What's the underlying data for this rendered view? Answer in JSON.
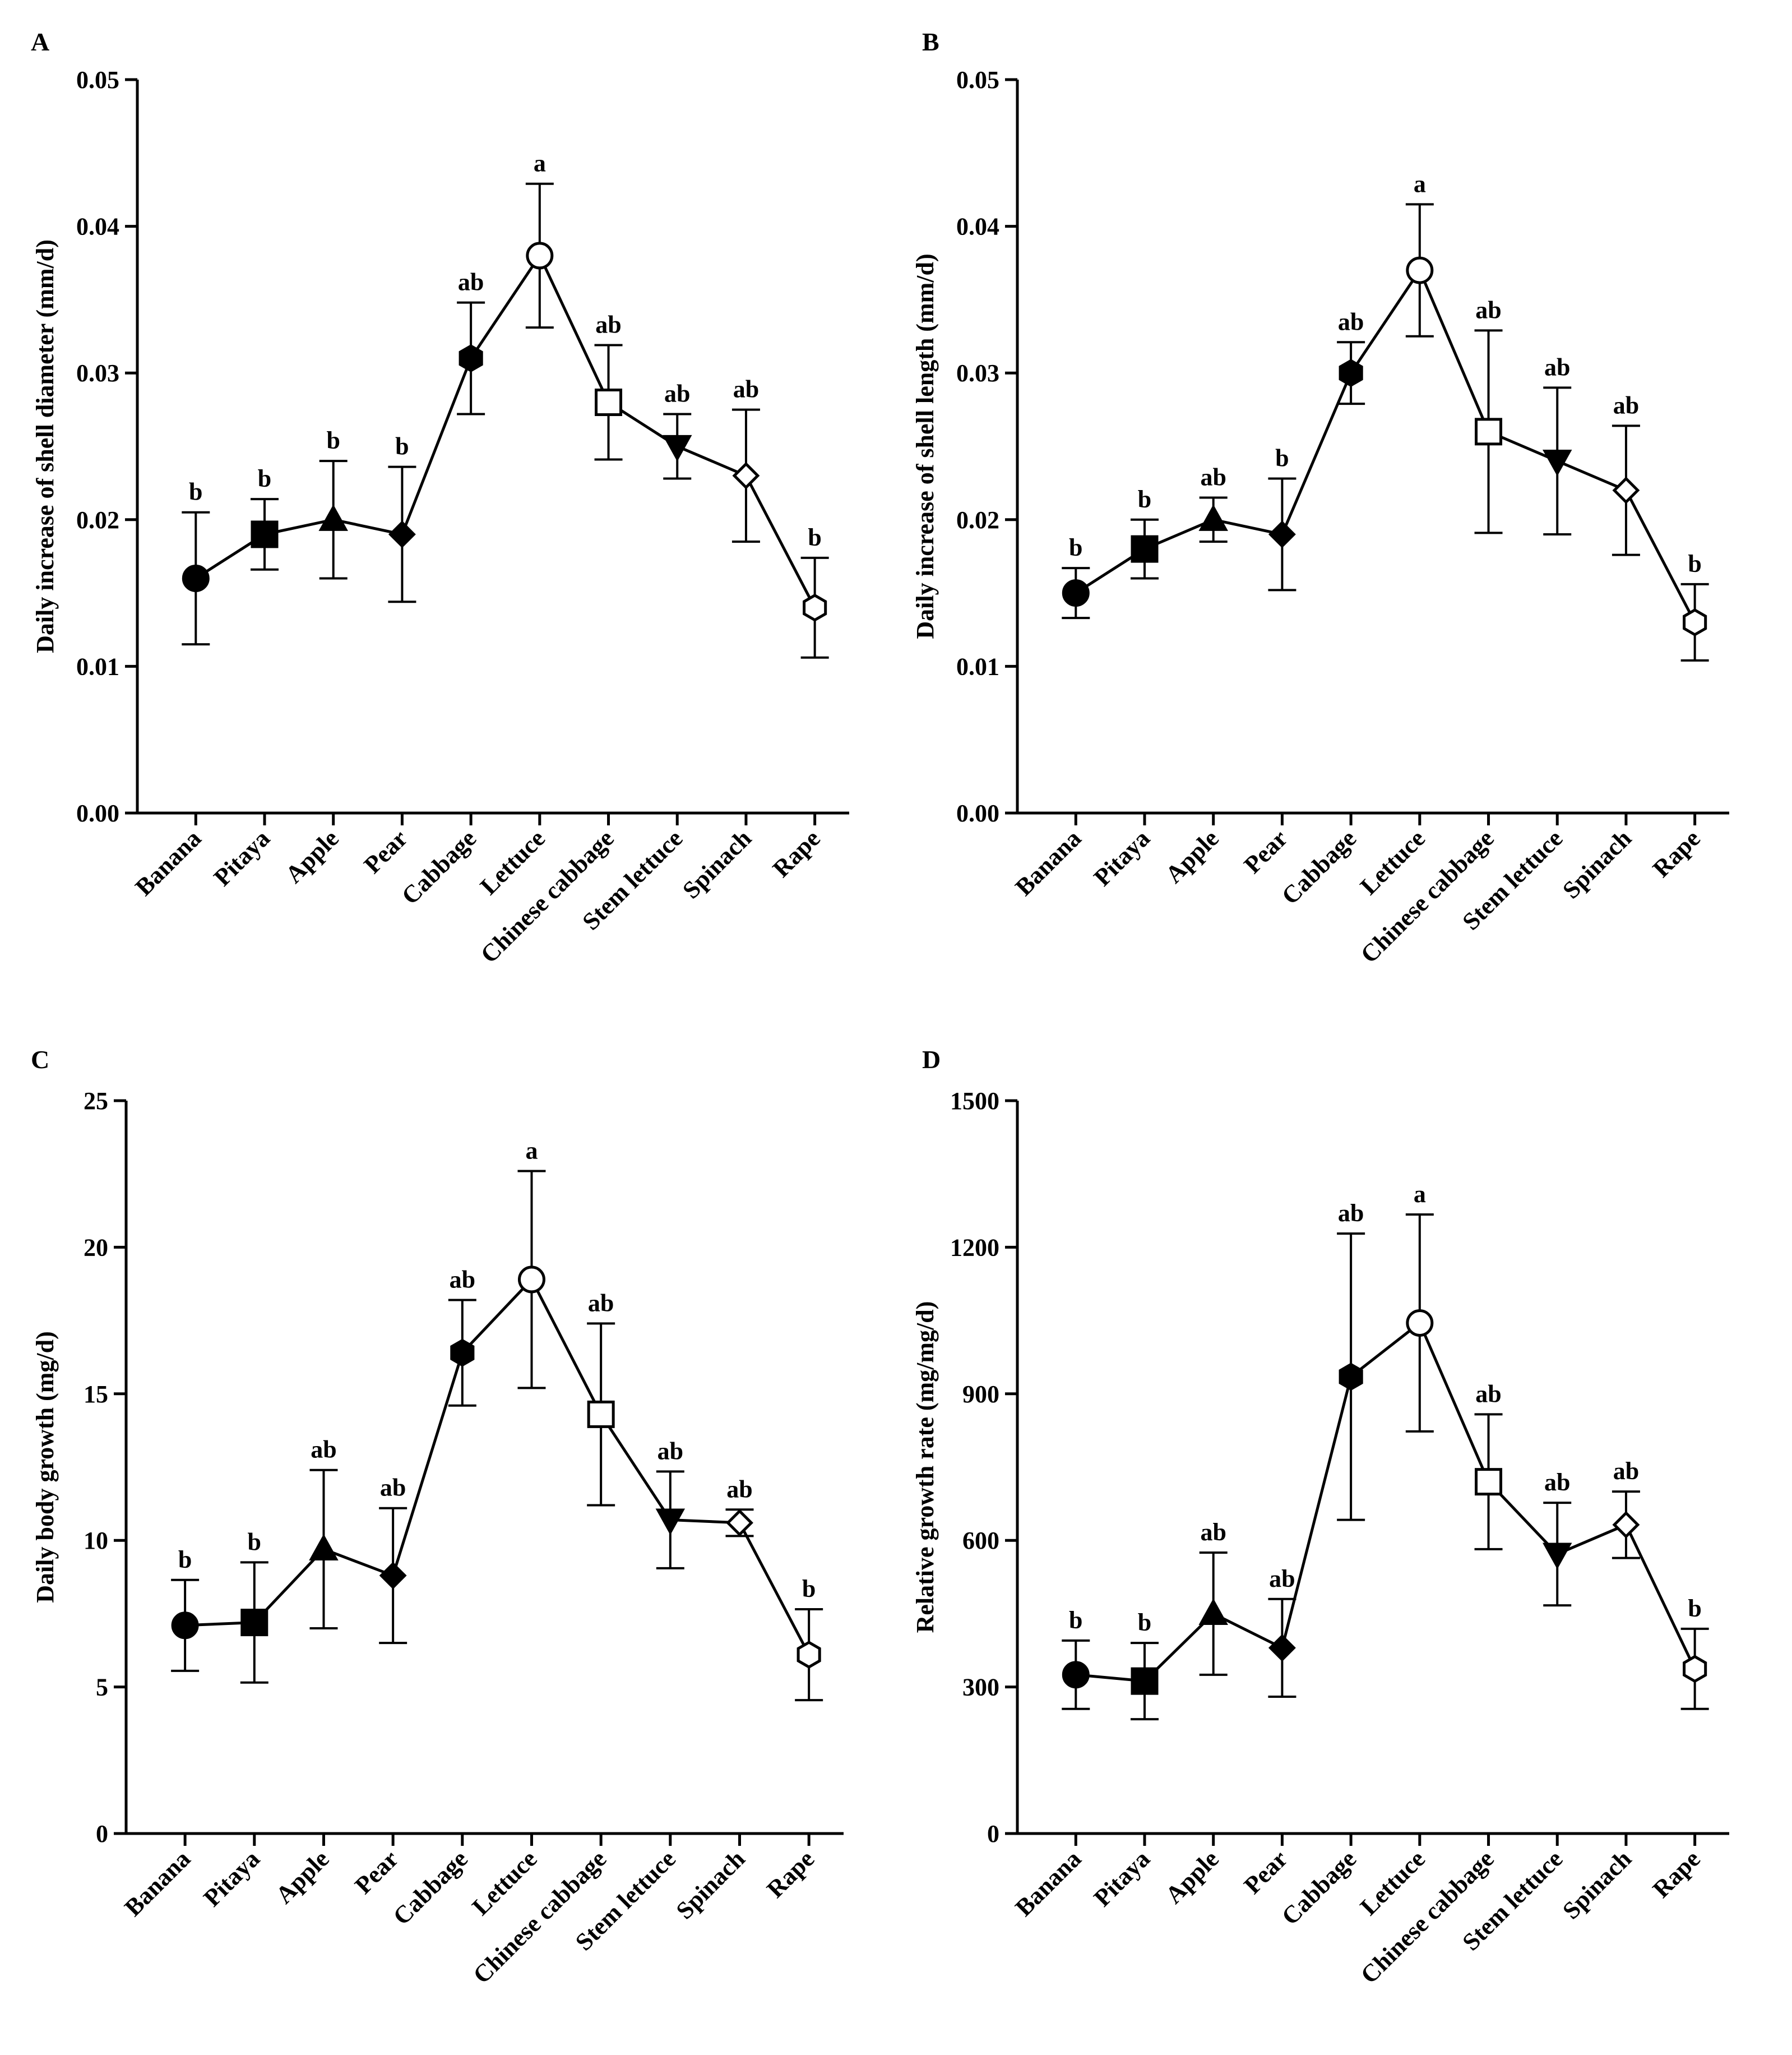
{
  "chart_data": [
    {
      "panel": "A",
      "type": "line",
      "ylabel": "Daily increase of shell diameter (mm/d)",
      "xlabel": "",
      "ylim": [
        0,
        0.05
      ],
      "yticks": [
        0.0,
        0.01,
        0.02,
        0.03,
        0.04,
        0.05
      ],
      "ytick_labels": [
        "0.00",
        "0.01",
        "0.02",
        "0.03",
        "0.04",
        "0.05"
      ],
      "categories": [
        "Banana",
        "Pitaya",
        "Apple",
        "Pear",
        "Cabbage",
        "Lettuce",
        "Chinese cabbage",
        "Stem lettuce",
        "Spinach",
        "Rape"
      ],
      "markers": [
        "circle-filled",
        "square-filled",
        "triangle-up-filled",
        "diamond-filled",
        "hexagon-filled",
        "circle-open",
        "square-open",
        "triangle-down-filled",
        "diamond-open",
        "hexagon-open"
      ],
      "values": [
        0.016,
        0.019,
        0.02,
        0.019,
        0.031,
        0.038,
        0.028,
        0.025,
        0.023,
        0.014
      ],
      "errors": [
        0.0045,
        0.0024,
        0.004,
        0.0046,
        0.0038,
        0.0049,
        0.0039,
        0.0022,
        0.0045,
        0.0034
      ],
      "significance": [
        "b",
        "b",
        "b",
        "b",
        "ab",
        "a",
        "ab",
        "ab",
        "ab",
        "b"
      ]
    },
    {
      "panel": "B",
      "type": "line",
      "ylabel": "Daily increase of shell length (mm/d)",
      "xlabel": "",
      "ylim": [
        0,
        0.05
      ],
      "yticks": [
        0.0,
        0.01,
        0.02,
        0.03,
        0.04,
        0.05
      ],
      "ytick_labels": [
        "0.00",
        "0.01",
        "0.02",
        "0.03",
        "0.04",
        "0.05"
      ],
      "categories": [
        "Banana",
        "Pitaya",
        "Apple",
        "Pear",
        "Cabbage",
        "Lettuce",
        "Chinese cabbage",
        "Stem lettuce",
        "Spinach",
        "Rape"
      ],
      "markers": [
        "circle-filled",
        "square-filled",
        "triangle-up-filled",
        "diamond-filled",
        "hexagon-filled",
        "circle-open",
        "square-open",
        "triangle-down-filled",
        "diamond-open",
        "hexagon-open"
      ],
      "values": [
        0.015,
        0.018,
        0.02,
        0.019,
        0.03,
        0.037,
        0.026,
        0.024,
        0.022,
        0.013
      ],
      "errors": [
        0.0017,
        0.002,
        0.0015,
        0.0038,
        0.0021,
        0.0045,
        0.0069,
        0.005,
        0.0044,
        0.0026
      ],
      "significance": [
        "b",
        "b",
        "ab",
        "b",
        "ab",
        "a",
        "ab",
        "ab",
        "ab",
        "b"
      ]
    },
    {
      "panel": "C",
      "type": "line",
      "ylabel": "Daily body growth (mg/d)",
      "xlabel": "",
      "ylim": [
        0,
        25
      ],
      "yticks": [
        0,
        5,
        10,
        15,
        20,
        25
      ],
      "ytick_labels": [
        "0",
        "5",
        "10",
        "15",
        "20",
        "25"
      ],
      "categories": [
        "Banana",
        "Pitaya",
        "Apple",
        "Pear",
        "Cabbage",
        "Lettuce",
        "Chinese cabbage",
        "Stem lettuce",
        "Spinach",
        "Rape"
      ],
      "markers": [
        "circle-filled",
        "square-filled",
        "triangle-up-filled",
        "diamond-filled",
        "hexagon-filled",
        "circle-open",
        "square-open",
        "triangle-down-filled",
        "diamond-open",
        "hexagon-open"
      ],
      "values": [
        7.1,
        7.2,
        9.7,
        8.8,
        16.4,
        18.9,
        14.3,
        10.7,
        10.6,
        6.1
      ],
      "errors": [
        1.55,
        2.05,
        2.7,
        2.3,
        1.8,
        3.7,
        3.1,
        1.65,
        0.45,
        1.55
      ],
      "significance": [
        "b",
        "b",
        "ab",
        "ab",
        "ab",
        "a",
        "ab",
        "ab",
        "ab",
        "b"
      ]
    },
    {
      "panel": "D",
      "type": "line",
      "ylabel": "Relative growth rate (mg/mg/d)",
      "xlabel": "",
      "ylim": [
        0,
        1500
      ],
      "yticks": [
        0,
        300,
        600,
        900,
        1200,
        1500
      ],
      "ytick_labels": [
        "0",
        "300",
        "600",
        "900",
        "1200",
        "1500"
      ],
      "categories": [
        "Banana",
        "Pitaya",
        "Apple",
        "Pear",
        "Cabbage",
        "Lettuce",
        "Chinese cabbage",
        "Stem lettuce",
        "Spinach",
        "Rape"
      ],
      "markers": [
        "circle-filled",
        "square-filled",
        "triangle-up-filled",
        "diamond-filled",
        "hexagon-filled",
        "circle-open",
        "square-open",
        "triangle-down-filled",
        "diamond-open",
        "hexagon-open"
      ],
      "values": [
        325,
        312,
        450,
        380,
        935,
        1045,
        720,
        572,
        632,
        337
      ],
      "errors": [
        70,
        78,
        125,
        100,
        293,
        222,
        138,
        105,
        68,
        82
      ],
      "significance": [
        "b",
        "b",
        "ab",
        "ab",
        "ab",
        "a",
        "ab",
        "ab",
        "ab",
        "b"
      ]
    }
  ]
}
